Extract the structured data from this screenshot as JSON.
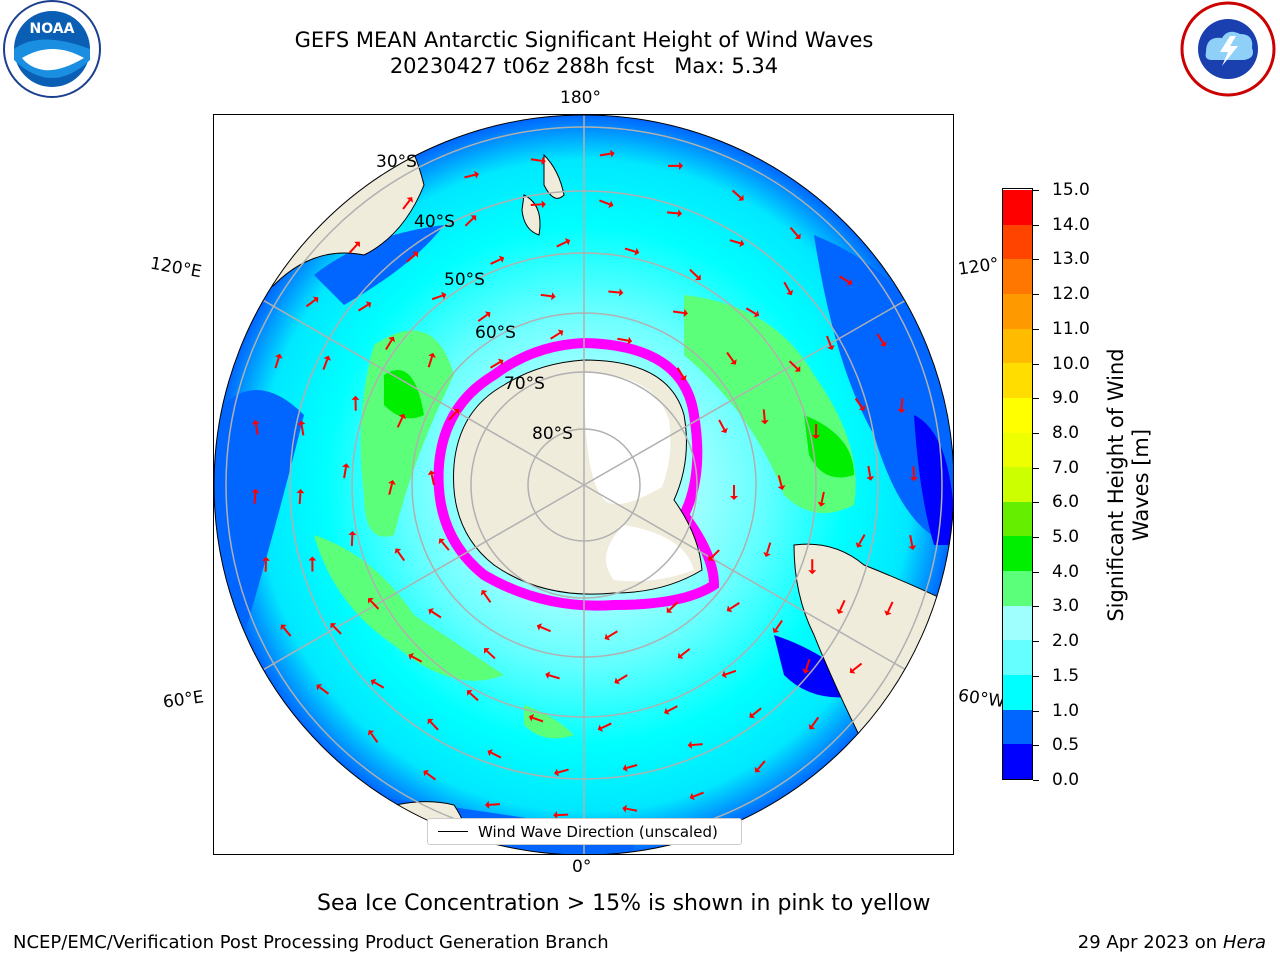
{
  "title": {
    "line1": "GEFS MEAN Antarctic Significant Height of Wind Waves",
    "line2": "20230427 t06z 288h fcst   Max: 5.34"
  },
  "map": {
    "projection": "south-polar-stereographic",
    "meridian_labels": {
      "top": "180°",
      "bottom": "0°",
      "left_upper": "120°E",
      "left_lower": "60°E",
      "right_upper": "120°",
      "right_lower": "60°W"
    },
    "latitude_labels": [
      "30°S",
      "40°S",
      "50°S",
      "60°S",
      "70°S",
      "80°S"
    ],
    "legend_label": "Wind Wave Direction (unscaled)",
    "arrow_color": "#ff0000",
    "land_color": "#efecdc",
    "ice_colors": [
      "#ff00ff",
      "#ffff00"
    ]
  },
  "colorbar": {
    "title_line1": "Significant Height of Wind",
    "title_line2": "Waves [m]",
    "tick_labels": [
      "0.0",
      "0.5",
      "1.0",
      "1.5",
      "2.0",
      "3.0",
      "4.0",
      "5.0",
      "6.0",
      "7.0",
      "8.0",
      "9.0",
      "10.0",
      "11.0",
      "12.0",
      "13.0",
      "14.0",
      "15.0"
    ],
    "colors": [
      "#0000ff",
      "#0066ff",
      "#00ffff",
      "#66ffff",
      "#9fffff",
      "#5cff7a",
      "#00ee00",
      "#66ee00",
      "#ccff00",
      "#eeff00",
      "#ffff00",
      "#ffdd00",
      "#ffbb00",
      "#ff9900",
      "#ff7700",
      "#ff4400",
      "#ff0000"
    ]
  },
  "footnote": "Sea Ice Concentration > 15% is shown in pink to yellow",
  "credit_left": "NCEP/EMC/Verification Post Processing Product Generation Branch",
  "credit_right_date": "29 Apr 2023 on ",
  "credit_right_machine": "Hera",
  "logos": {
    "left": "NOAA",
    "right": "NATIONAL WEATHER SERVICE"
  }
}
